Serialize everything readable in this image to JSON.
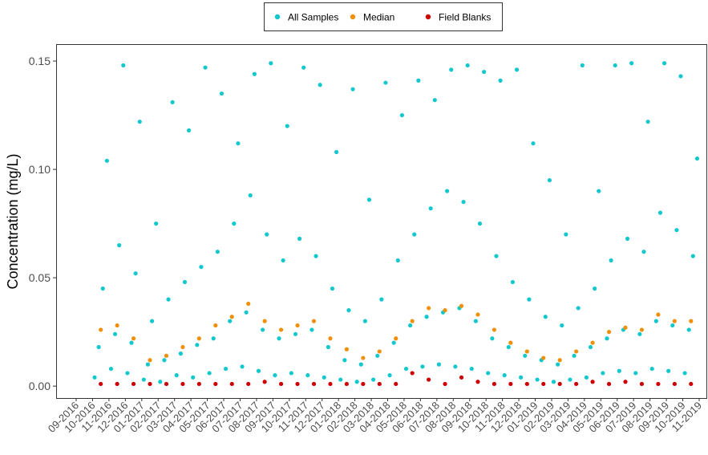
{
  "chart_data": {
    "type": "scatter",
    "ylabel": "Concentration (mg/L)",
    "ylim": [
      -0.0055,
      0.1578
    ],
    "yticks": [
      {
        "value": 0,
        "label": "0.00"
      },
      {
        "value": 0.05,
        "label": "0.05"
      },
      {
        "value": 0.1,
        "label": "0.10"
      },
      {
        "value": 0.15,
        "label": "0.15"
      }
    ],
    "xticks": [
      "09-2016",
      "10-2016",
      "11-2016",
      "12-2016",
      "01-2017",
      "02-2017",
      "03-2017",
      "04-2017",
      "05-2017",
      "06-2017",
      "07-2017",
      "08-2017",
      "09-2017",
      "10-2017",
      "11-2017",
      "12-2017",
      "01-2018",
      "02-2018",
      "03-2018",
      "04-2018",
      "05-2018",
      "06-2018",
      "07-2018",
      "08-2018",
      "09-2018",
      "10-2018",
      "11-2018",
      "12-2018",
      "01-2019",
      "02-2019",
      "03-2019",
      "04-2019",
      "05-2019",
      "06-2019",
      "07-2019",
      "08-2019",
      "09-2019",
      "10-2019",
      "11-2019"
    ],
    "legend": "top",
    "series": [
      {
        "name": "All Samples",
        "color": "#13c8cc",
        "x": [
          "10-2016",
          "10-2016",
          "10-2016",
          "10-2016",
          "11-2016",
          "11-2016",
          "11-2016",
          "11-2016",
          "12-2016",
          "12-2016",
          "12-2016",
          "12-2016",
          "01-2017",
          "01-2017",
          "01-2017",
          "01-2017",
          "02-2017",
          "02-2017",
          "02-2017",
          "02-2017",
          "03-2017",
          "03-2017",
          "03-2017",
          "03-2017",
          "04-2017",
          "04-2017",
          "04-2017",
          "04-2017",
          "05-2017",
          "05-2017",
          "05-2017",
          "05-2017",
          "06-2017",
          "06-2017",
          "06-2017",
          "06-2017",
          "07-2017",
          "07-2017",
          "07-2017",
          "07-2017",
          "08-2017",
          "08-2017",
          "08-2017",
          "08-2017",
          "09-2017",
          "09-2017",
          "09-2017",
          "09-2017",
          "10-2017",
          "10-2017",
          "10-2017",
          "10-2017",
          "11-2017",
          "11-2017",
          "11-2017",
          "11-2017",
          "12-2017",
          "12-2017",
          "12-2017",
          "12-2017",
          "01-2018",
          "01-2018",
          "01-2018",
          "01-2018",
          "02-2018",
          "02-2018",
          "02-2018",
          "02-2018",
          "03-2018",
          "03-2018",
          "03-2018",
          "03-2018",
          "04-2018",
          "04-2018",
          "04-2018",
          "04-2018",
          "05-2018",
          "05-2018",
          "05-2018",
          "05-2018",
          "06-2018",
          "06-2018",
          "06-2018",
          "06-2018",
          "07-2018",
          "07-2018",
          "07-2018",
          "07-2018",
          "08-2018",
          "08-2018",
          "08-2018",
          "08-2018",
          "09-2018",
          "09-2018",
          "09-2018",
          "09-2018",
          "10-2018",
          "10-2018",
          "10-2018",
          "10-2018",
          "11-2018",
          "11-2018",
          "11-2018",
          "11-2018",
          "12-2018",
          "12-2018",
          "12-2018",
          "12-2018",
          "01-2019",
          "01-2019",
          "01-2019",
          "01-2019",
          "02-2019",
          "02-2019",
          "02-2019",
          "02-2019",
          "03-2019",
          "03-2019",
          "03-2019",
          "03-2019",
          "04-2019",
          "04-2019",
          "04-2019",
          "04-2019",
          "05-2019",
          "05-2019",
          "05-2019",
          "05-2019",
          "06-2019",
          "06-2019",
          "06-2019",
          "06-2019",
          "07-2019",
          "07-2019",
          "07-2019",
          "07-2019",
          "08-2019",
          "08-2019",
          "08-2019",
          "08-2019",
          "09-2019",
          "09-2019",
          "09-2019",
          "09-2019",
          "10-2019",
          "10-2019",
          "10-2019",
          "10-2019"
        ],
        "values": [
          0.004,
          0.018,
          0.045,
          0.104,
          0.008,
          0.024,
          0.065,
          0.148,
          0.006,
          0.02,
          0.052,
          0.122,
          0.003,
          0.01,
          0.03,
          0.075,
          0.002,
          0.012,
          0.04,
          0.131,
          0.005,
          0.015,
          0.048,
          0.118,
          0.004,
          0.019,
          0.055,
          0.147,
          0.006,
          0.022,
          0.062,
          0.135,
          0.008,
          0.03,
          0.075,
          0.112,
          0.009,
          0.034,
          0.088,
          0.144,
          0.007,
          0.026,
          0.07,
          0.149,
          0.005,
          0.022,
          0.058,
          0.12,
          0.006,
          0.024,
          0.068,
          0.147,
          0.005,
          0.026,
          0.06,
          0.139,
          0.004,
          0.018,
          0.045,
          0.108,
          0.003,
          0.012,
          0.035,
          0.137,
          0.002,
          0.01,
          0.03,
          0.086,
          0.003,
          0.014,
          0.04,
          0.14,
          0.005,
          0.02,
          0.058,
          0.125,
          0.008,
          0.028,
          0.07,
          0.141,
          0.009,
          0.032,
          0.082,
          0.132,
          0.01,
          0.034,
          0.09,
          0.146,
          0.009,
          0.036,
          0.085,
          0.148,
          0.008,
          0.03,
          0.075,
          0.145,
          0.006,
          0.022,
          0.06,
          0.141,
          0.005,
          0.018,
          0.048,
          0.146,
          0.004,
          0.014,
          0.04,
          0.112,
          0.003,
          0.012,
          0.032,
          0.095,
          0.002,
          0.01,
          0.028,
          0.07,
          0.003,
          0.014,
          0.036,
          0.148,
          0.004,
          0.018,
          0.045,
          0.09,
          0.006,
          0.022,
          0.058,
          0.148,
          0.007,
          0.026,
          0.068,
          0.149,
          0.006,
          0.024,
          0.062,
          0.122,
          0.008,
          0.03,
          0.08,
          0.149,
          0.007,
          0.028,
          0.072,
          0.143,
          0.006,
          0.026,
          0.06,
          0.105
        ]
      },
      {
        "name": "Median",
        "color": "#f0900a",
        "x": [
          "10-2016",
          "11-2016",
          "12-2016",
          "01-2017",
          "02-2017",
          "03-2017",
          "04-2017",
          "05-2017",
          "06-2017",
          "07-2017",
          "08-2017",
          "09-2017",
          "10-2017",
          "11-2017",
          "12-2017",
          "01-2018",
          "02-2018",
          "03-2018",
          "04-2018",
          "05-2018",
          "06-2018",
          "07-2018",
          "08-2018",
          "09-2018",
          "10-2018",
          "11-2018",
          "12-2018",
          "01-2019",
          "02-2019",
          "03-2019",
          "04-2019",
          "05-2019",
          "06-2019",
          "07-2019",
          "08-2019",
          "09-2019",
          "10-2019"
        ],
        "values": [
          0.026,
          0.028,
          0.022,
          0.012,
          0.014,
          0.018,
          0.022,
          0.028,
          0.032,
          0.038,
          0.03,
          0.026,
          0.028,
          0.03,
          0.022,
          0.017,
          0.013,
          0.016,
          0.022,
          0.03,
          0.036,
          0.035,
          0.037,
          0.033,
          0.026,
          0.02,
          0.016,
          0.013,
          0.012,
          0.016,
          0.02,
          0.025,
          0.027,
          0.026,
          0.033,
          0.03,
          0.03
        ]
      },
      {
        "name": "Field Blanks",
        "color": "#cc0000",
        "x": [
          "10-2016",
          "11-2016",
          "12-2016",
          "01-2017",
          "02-2017",
          "03-2017",
          "04-2017",
          "05-2017",
          "06-2017",
          "07-2017",
          "08-2017",
          "09-2017",
          "10-2017",
          "11-2017",
          "12-2017",
          "01-2018",
          "02-2018",
          "03-2018",
          "04-2018",
          "05-2018",
          "06-2018",
          "07-2018",
          "08-2018",
          "09-2018",
          "10-2018",
          "11-2018",
          "12-2018",
          "01-2019",
          "02-2019",
          "03-2019",
          "04-2019",
          "05-2019",
          "06-2019",
          "07-2019",
          "08-2019",
          "09-2019",
          "10-2019"
        ],
        "values": [
          0.001,
          0.001,
          0.001,
          0.001,
          0.001,
          0.001,
          0.001,
          0.001,
          0.001,
          0.001,
          0.002,
          0.001,
          0.001,
          0.001,
          0.001,
          0.001,
          0.001,
          0.001,
          0.001,
          0.006,
          0.003,
          0.001,
          0.004,
          0.002,
          0.001,
          0.001,
          0.001,
          0.001,
          0.001,
          0.001,
          0.002,
          0.001,
          0.002,
          0.001,
          0.001,
          0.001,
          0.001
        ]
      }
    ]
  }
}
